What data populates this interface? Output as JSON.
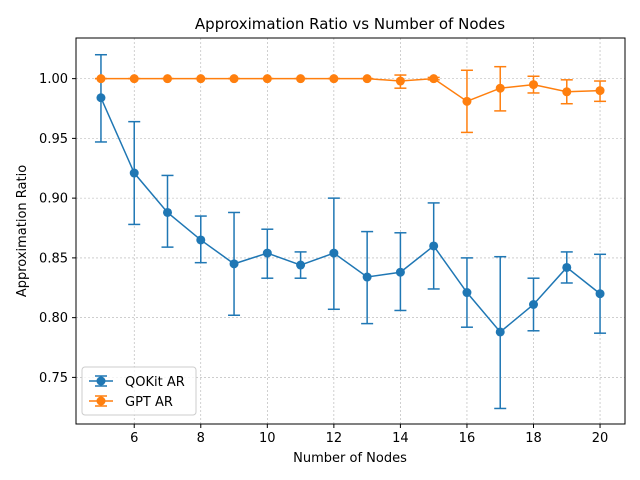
{
  "chart_data": {
    "type": "line",
    "title": "Approximation Ratio vs Number of Nodes",
    "xlabel": "Number of Nodes",
    "ylabel": "Approximation Ratio",
    "xlim": [
      4.25,
      20.75
    ],
    "ylim": [
      0.711,
      1.034
    ],
    "xticks": [
      6,
      8,
      10,
      12,
      14,
      16,
      18,
      20
    ],
    "yticks": [
      0.75,
      0.8,
      0.85,
      0.9,
      0.95,
      1.0
    ],
    "ytick_labels": [
      "0.75",
      "0.80",
      "0.85",
      "0.90",
      "0.95",
      "1.00"
    ],
    "grid": true,
    "legend_position": "lower-left",
    "x": [
      5,
      6,
      7,
      8,
      9,
      10,
      11,
      12,
      13,
      14,
      15,
      16,
      17,
      18,
      19,
      20
    ],
    "series": [
      {
        "name": "QOKit AR",
        "color": "#1f77b4",
        "values": [
          0.984,
          0.921,
          0.888,
          0.865,
          0.845,
          0.854,
          0.844,
          0.854,
          0.834,
          0.838,
          0.86,
          0.821,
          0.788,
          0.811,
          0.842,
          0.82
        ],
        "err_low": [
          0.947,
          0.878,
          0.859,
          0.846,
          0.802,
          0.833,
          0.833,
          0.807,
          0.795,
          0.806,
          0.824,
          0.792,
          0.724,
          0.789,
          0.829,
          0.787
        ],
        "err_high": [
          1.02,
          0.964,
          0.919,
          0.885,
          0.888,
          0.874,
          0.855,
          0.9,
          0.872,
          0.871,
          0.896,
          0.85,
          0.851,
          0.833,
          0.855,
          0.853
        ]
      },
      {
        "name": "GPT AR",
        "color": "#ff7f0e",
        "values": [
          1.0,
          1.0,
          1.0,
          1.0,
          1.0,
          1.0,
          1.0,
          1.0,
          1.0,
          0.998,
          1.0,
          0.981,
          0.992,
          0.995,
          0.989,
          0.99
        ],
        "err_low": [
          1.0,
          1.0,
          1.0,
          1.0,
          1.0,
          1.0,
          1.0,
          1.0,
          1.0,
          0.992,
          0.999,
          0.955,
          0.973,
          0.988,
          0.979,
          0.981
        ],
        "err_high": [
          1.0,
          1.0,
          1.0,
          1.0,
          1.0,
          1.0,
          1.0,
          1.0,
          1.0,
          1.003,
          1.001,
          1.007,
          1.01,
          1.002,
          0.999,
          0.998
        ]
      }
    ]
  }
}
